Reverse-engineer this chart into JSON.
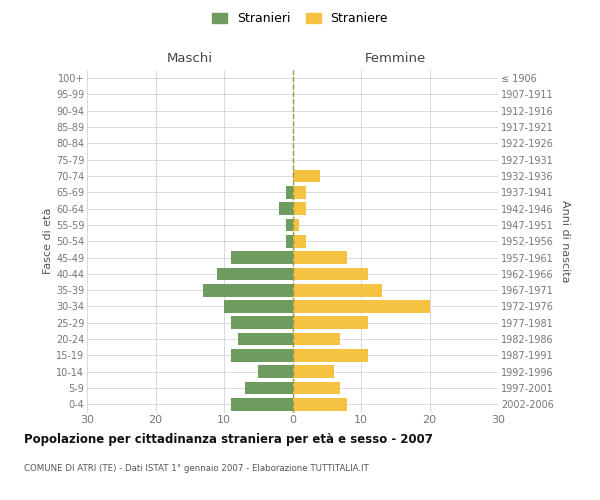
{
  "age_groups": [
    "100+",
    "95-99",
    "90-94",
    "85-89",
    "80-84",
    "75-79",
    "70-74",
    "65-69",
    "60-64",
    "55-59",
    "50-54",
    "45-49",
    "40-44",
    "35-39",
    "30-34",
    "25-29",
    "20-24",
    "15-19",
    "10-14",
    "5-9",
    "0-4"
  ],
  "birth_years": [
    "≤ 1906",
    "1907-1911",
    "1912-1916",
    "1917-1921",
    "1922-1926",
    "1927-1931",
    "1932-1936",
    "1937-1941",
    "1942-1946",
    "1947-1951",
    "1952-1956",
    "1957-1961",
    "1962-1966",
    "1967-1971",
    "1972-1976",
    "1977-1981",
    "1982-1986",
    "1987-1991",
    "1992-1996",
    "1997-2001",
    "2002-2006"
  ],
  "males": [
    0,
    0,
    0,
    0,
    0,
    0,
    0,
    1,
    2,
    1,
    1,
    9,
    11,
    13,
    10,
    9,
    8,
    9,
    5,
    7,
    9
  ],
  "females": [
    0,
    0,
    0,
    0,
    0,
    0,
    4,
    2,
    2,
    1,
    2,
    8,
    11,
    13,
    20,
    11,
    7,
    11,
    6,
    7,
    8
  ],
  "male_color": "#6e9c5e",
  "female_color": "#f5c242",
  "dashed_line_color": "#999944",
  "grid_color": "#cccccc",
  "title": "Popolazione per cittadinanza straniera per età e sesso - 2007",
  "subtitle": "COMUNE DI ATRI (TE) - Dati ISTAT 1° gennaio 2007 - Elaborazione TUTTITALIA.IT",
  "header_left": "Maschi",
  "header_right": "Femmine",
  "ylabel_left": "Fasce di età",
  "ylabel_right": "Anni di nascita",
  "legend_male": "Stranieri",
  "legend_female": "Straniere",
  "xlim": 30,
  "background_color": "#ffffff",
  "bar_height": 0.78
}
